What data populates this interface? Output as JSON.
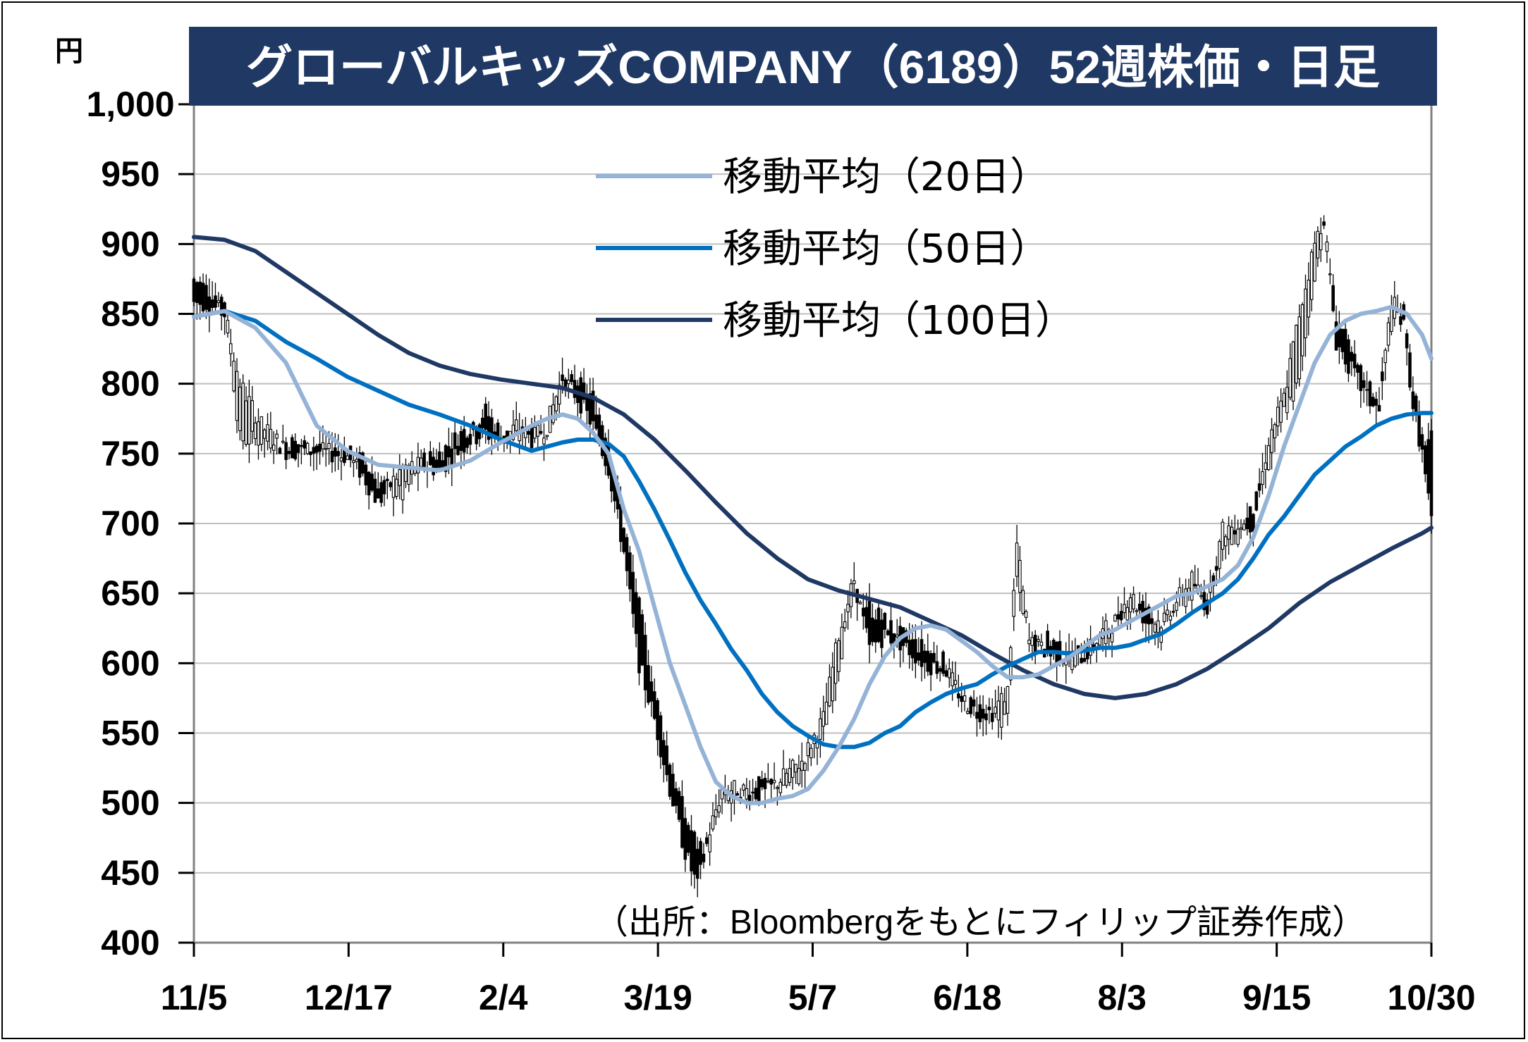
{
  "chart_data": {
    "type": "candlestick",
    "title": "グローバルキッズCOMPANY（6189）52週株価・日足",
    "ylabel": "円",
    "ylim": [
      400,
      1000
    ],
    "yticks": [
      "1,000",
      "950",
      "900",
      "850",
      "800",
      "750",
      "700",
      "650",
      "600",
      "550",
      "500",
      "450",
      "400"
    ],
    "xticks": [
      "11/5",
      "12/17",
      "2/4",
      "3/19",
      "5/7",
      "6/18",
      "8/3",
      "9/15",
      "10/30"
    ],
    "source": "（出所：Bloombergをもとにフィリップ証券作成）",
    "grid": true,
    "legend_position": "top-right",
    "legend": [
      {
        "name": "移動平均（20日）",
        "color": "#95b3d7"
      },
      {
        "name": "移動平均（50日）",
        "color": "#0070c0"
      },
      {
        "name": "移動平均（100日）",
        "color": "#1f3864"
      }
    ],
    "colors": {
      "title_bg": "#1f3864",
      "title_text": "#ffffff",
      "grid": "#bfbfbf"
    },
    "candle_anchors": [
      [
        0,
        875,
        858
      ],
      [
        4,
        868,
        858
      ],
      [
        10,
        860,
        850
      ],
      [
        15,
        760,
        800
      ],
      [
        22,
        760,
        770
      ],
      [
        30,
        758,
        752
      ],
      [
        40,
        755,
        752
      ],
      [
        50,
        750,
        748
      ],
      [
        55,
        745,
        735
      ],
      [
        60,
        730,
        715
      ],
      [
        68,
        720,
        740
      ],
      [
        75,
        745,
        742
      ],
      [
        80,
        750,
        738
      ],
      [
        85,
        760,
        750
      ],
      [
        90,
        770,
        760
      ],
      [
        95,
        780,
        765
      ],
      [
        100,
        765,
        758
      ],
      [
        105,
        760,
        770
      ],
      [
        110,
        770,
        760
      ],
      [
        115,
        760,
        770
      ],
      [
        120,
        800,
        805
      ],
      [
        125,
        800,
        790
      ],
      [
        130,
        790,
        770
      ],
      [
        135,
        760,
        740
      ],
      [
        140,
        700,
        680
      ],
      [
        145,
        640,
        600
      ],
      [
        150,
        580,
        560
      ],
      [
        155,
        530,
        510
      ],
      [
        160,
        490,
        465
      ],
      [
        164,
        470,
        440
      ],
      [
        168,
        470,
        480
      ],
      [
        172,
        500,
        510
      ],
      [
        178,
        500,
        510
      ],
      [
        185,
        520,
        505
      ],
      [
        190,
        510,
        515
      ],
      [
        198,
        520,
        530
      ],
      [
        205,
        550,
        560
      ],
      [
        210,
        600,
        620
      ],
      [
        215,
        650,
        660
      ],
      [
        220,
        640,
        610
      ],
      [
        225,
        630,
        620
      ],
      [
        230,
        620,
        615
      ],
      [
        238,
        610,
        600
      ],
      [
        245,
        600,
        595
      ],
      [
        250,
        570,
        575
      ],
      [
        255,
        570,
        565
      ],
      [
        260,
        560,
        565
      ],
      [
        265,
        560,
        580
      ],
      [
        268,
        660,
        685
      ],
      [
        272,
        620,
        615
      ],
      [
        280,
        615,
        605
      ],
      [
        285,
        600,
        605
      ],
      [
        290,
        610,
        605
      ],
      [
        295,
        610,
        620
      ],
      [
        300,
        625,
        630
      ],
      [
        305,
        640,
        650
      ],
      [
        310,
        640,
        630
      ],
      [
        315,
        620,
        630
      ],
      [
        320,
        640,
        645
      ],
      [
        325,
        650,
        660
      ],
      [
        330,
        650,
        640
      ],
      [
        335,
        680,
        695
      ],
      [
        340,
        690,
        700
      ],
      [
        345,
        710,
        700
      ],
      [
        350,
        740,
        760
      ],
      [
        355,
        780,
        790
      ],
      [
        360,
        800,
        850
      ],
      [
        365,
        880,
        900
      ],
      [
        368,
        910,
        920
      ],
      [
        372,
        850,
        830
      ],
      [
        377,
        820,
        810
      ],
      [
        382,
        800,
        790
      ],
      [
        386,
        790,
        780
      ],
      [
        390,
        840,
        860
      ],
      [
        394,
        860,
        840
      ],
      [
        397,
        800,
        785
      ],
      [
        400,
        760,
        750
      ],
      [
        403,
        760,
        700
      ]
    ],
    "ma20": [
      [
        0,
        848
      ],
      [
        10,
        852
      ],
      [
        20,
        840
      ],
      [
        30,
        815
      ],
      [
        40,
        770
      ],
      [
        50,
        752
      ],
      [
        60,
        742
      ],
      [
        70,
        740
      ],
      [
        80,
        738
      ],
      [
        90,
        745
      ],
      [
        100,
        758
      ],
      [
        110,
        770
      ],
      [
        115,
        775
      ],
      [
        120,
        778
      ],
      [
        125,
        775
      ],
      [
        130,
        765
      ],
      [
        135,
        750
      ],
      [
        140,
        710
      ],
      [
        145,
        680
      ],
      [
        150,
        640
      ],
      [
        155,
        600
      ],
      [
        160,
        570
      ],
      [
        165,
        540
      ],
      [
        170,
        515
      ],
      [
        175,
        505
      ],
      [
        180,
        500
      ],
      [
        185,
        500
      ],
      [
        190,
        503
      ],
      [
        195,
        505
      ],
      [
        200,
        510
      ],
      [
        205,
        523
      ],
      [
        210,
        540
      ],
      [
        215,
        560
      ],
      [
        220,
        585
      ],
      [
        225,
        605
      ],
      [
        230,
        618
      ],
      [
        235,
        625
      ],
      [
        240,
        627
      ],
      [
        245,
        624
      ],
      [
        250,
        616
      ],
      [
        255,
        608
      ],
      [
        260,
        598
      ],
      [
        265,
        590
      ],
      [
        270,
        590
      ],
      [
        275,
        592
      ],
      [
        280,
        598
      ],
      [
        285,
        604
      ],
      [
        290,
        612
      ],
      [
        295,
        620
      ],
      [
        300,
        624
      ],
      [
        305,
        630
      ],
      [
        310,
        636
      ],
      [
        315,
        642
      ],
      [
        320,
        648
      ],
      [
        325,
        650
      ],
      [
        330,
        655
      ],
      [
        335,
        660
      ],
      [
        340,
        670
      ],
      [
        345,
        690
      ],
      [
        350,
        720
      ],
      [
        355,
        755
      ],
      [
        360,
        785
      ],
      [
        365,
        815
      ],
      [
        370,
        835
      ],
      [
        375,
        845
      ],
      [
        380,
        850
      ],
      [
        385,
        852
      ],
      [
        390,
        855
      ],
      [
        395,
        850
      ],
      [
        400,
        835
      ],
      [
        403,
        818
      ]
    ],
    "ma50": [
      [
        0,
        848
      ],
      [
        10,
        852
      ],
      [
        20,
        845
      ],
      [
        30,
        830
      ],
      [
        40,
        818
      ],
      [
        50,
        805
      ],
      [
        60,
        795
      ],
      [
        70,
        785
      ],
      [
        80,
        778
      ],
      [
        90,
        770
      ],
      [
        100,
        760
      ],
      [
        110,
        752
      ],
      [
        115,
        755
      ],
      [
        120,
        758
      ],
      [
        125,
        760
      ],
      [
        130,
        760
      ],
      [
        135,
        757
      ],
      [
        140,
        748
      ],
      [
        145,
        730
      ],
      [
        150,
        710
      ],
      [
        155,
        688
      ],
      [
        160,
        665
      ],
      [
        165,
        645
      ],
      [
        170,
        628
      ],
      [
        175,
        610
      ],
      [
        180,
        595
      ],
      [
        185,
        578
      ],
      [
        190,
        565
      ],
      [
        195,
        555
      ],
      [
        200,
        548
      ],
      [
        205,
        542
      ],
      [
        210,
        540
      ],
      [
        215,
        540
      ],
      [
        220,
        543
      ],
      [
        225,
        550
      ],
      [
        230,
        555
      ],
      [
        235,
        565
      ],
      [
        240,
        572
      ],
      [
        245,
        578
      ],
      [
        250,
        582
      ],
      [
        255,
        585
      ],
      [
        260,
        592
      ],
      [
        265,
        598
      ],
      [
        270,
        603
      ],
      [
        275,
        608
      ],
      [
        280,
        608
      ],
      [
        285,
        607
      ],
      [
        290,
        609
      ],
      [
        295,
        611
      ],
      [
        300,
        611
      ],
      [
        305,
        613
      ],
      [
        310,
        617
      ],
      [
        315,
        621
      ],
      [
        320,
        628
      ],
      [
        325,
        636
      ],
      [
        330,
        643
      ],
      [
        335,
        650
      ],
      [
        340,
        660
      ],
      [
        345,
        675
      ],
      [
        350,
        692
      ],
      [
        355,
        705
      ],
      [
        360,
        720
      ],
      [
        365,
        735
      ],
      [
        370,
        745
      ],
      [
        375,
        755
      ],
      [
        380,
        762
      ],
      [
        385,
        770
      ],
      [
        390,
        775
      ],
      [
        395,
        778
      ],
      [
        400,
        779
      ],
      [
        403,
        779
      ]
    ],
    "ma100": [
      [
        0,
        905
      ],
      [
        10,
        903
      ],
      [
        20,
        895
      ],
      [
        30,
        880
      ],
      [
        40,
        865
      ],
      [
        50,
        850
      ],
      [
        60,
        835
      ],
      [
        70,
        822
      ],
      [
        80,
        813
      ],
      [
        90,
        807
      ],
      [
        100,
        803
      ],
      [
        110,
        800
      ],
      [
        120,
        797
      ],
      [
        130,
        790
      ],
      [
        140,
        778
      ],
      [
        150,
        760
      ],
      [
        160,
        738
      ],
      [
        170,
        715
      ],
      [
        180,
        693
      ],
      [
        190,
        675
      ],
      [
        200,
        660
      ],
      [
        210,
        652
      ],
      [
        220,
        646
      ],
      [
        230,
        640
      ],
      [
        240,
        630
      ],
      [
        250,
        620
      ],
      [
        260,
        607
      ],
      [
        270,
        595
      ],
      [
        280,
        585
      ],
      [
        290,
        578
      ],
      [
        300,
        575
      ],
      [
        310,
        578
      ],
      [
        320,
        585
      ],
      [
        330,
        596
      ],
      [
        340,
        610
      ],
      [
        350,
        625
      ],
      [
        360,
        643
      ],
      [
        370,
        658
      ],
      [
        380,
        670
      ],
      [
        390,
        682
      ],
      [
        400,
        693
      ],
      [
        403,
        697
      ]
    ]
  }
}
